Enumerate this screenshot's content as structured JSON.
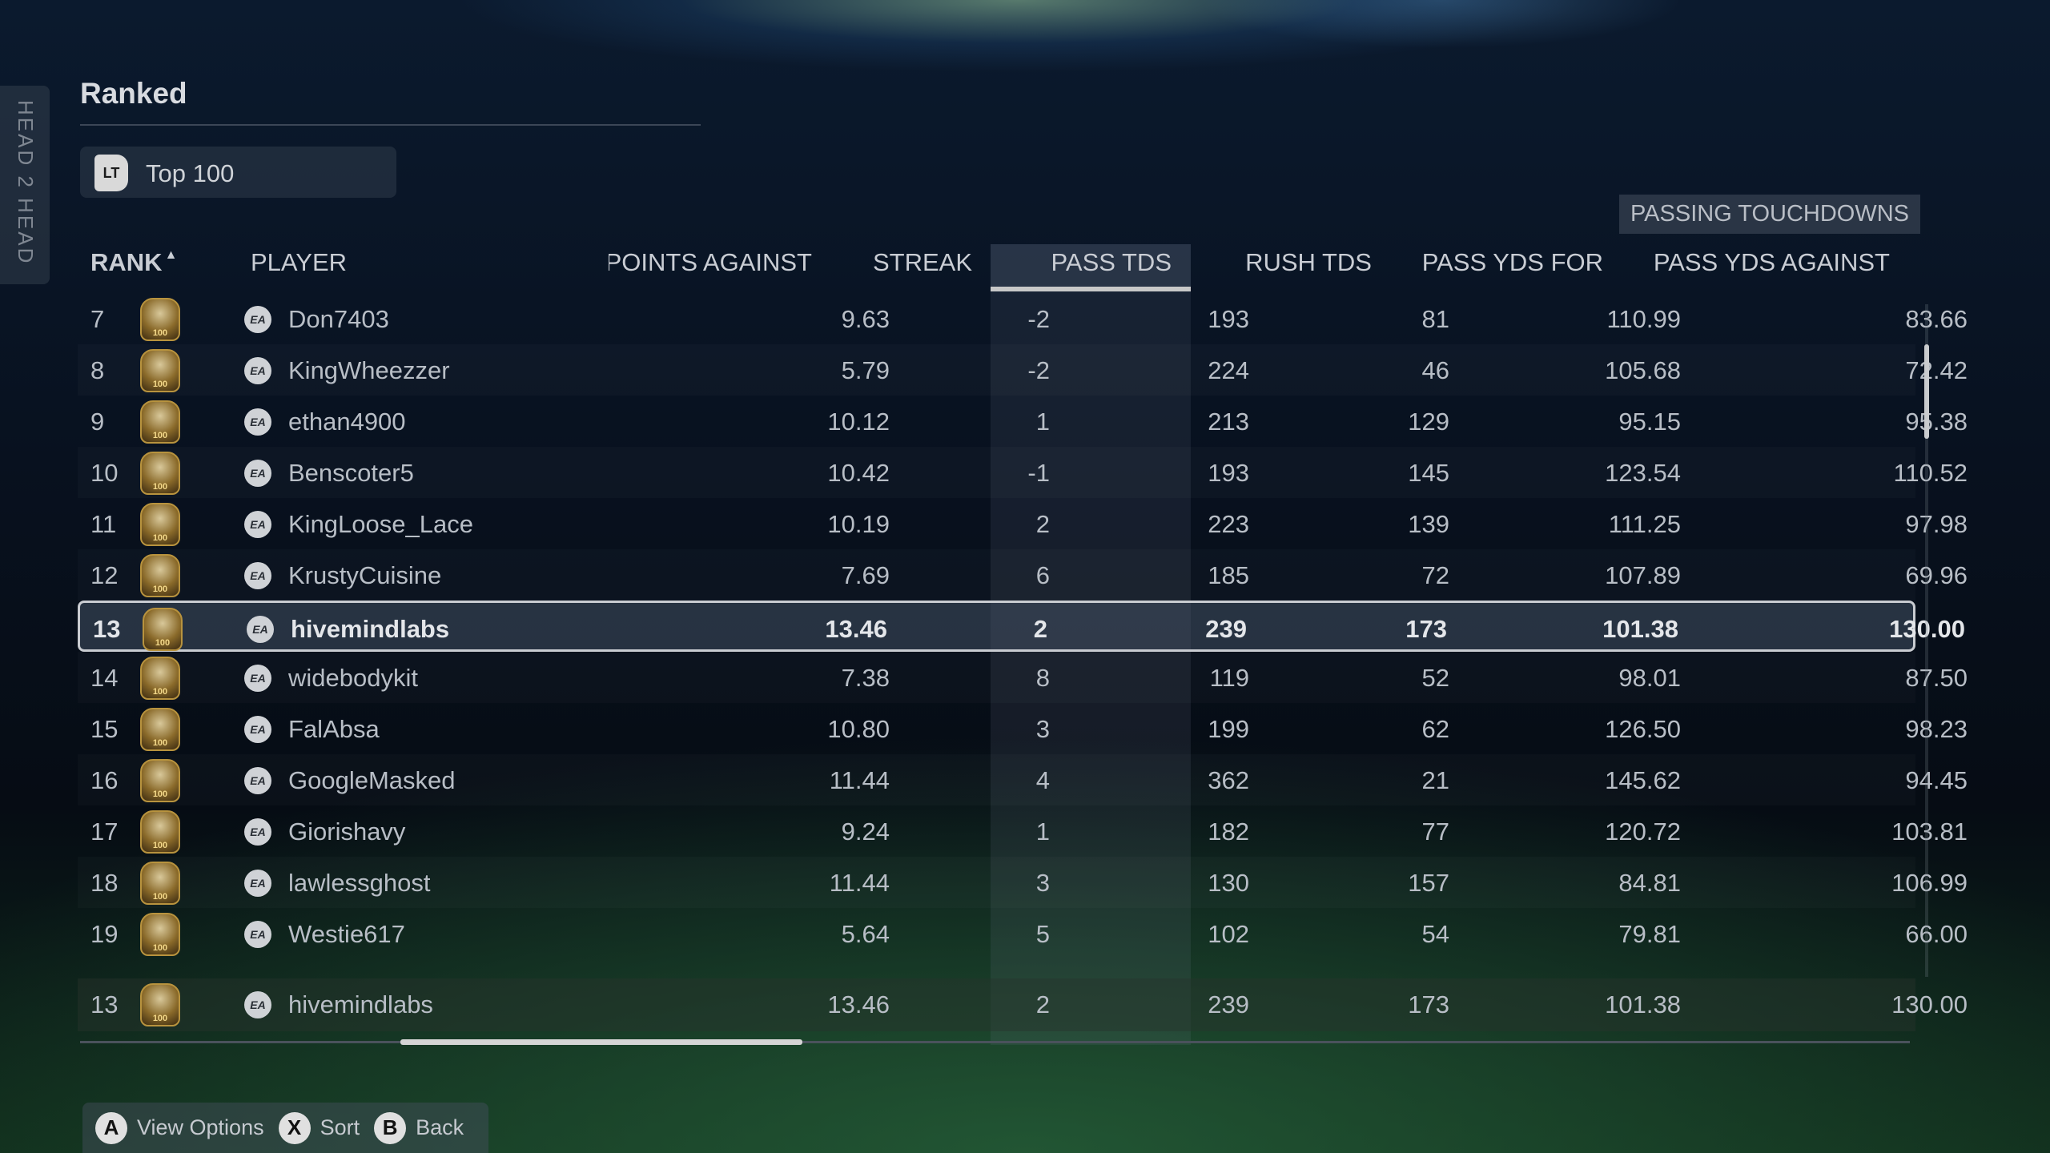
{
  "side_tab": "HEAD 2 HEAD",
  "title": "Ranked",
  "filter": {
    "button": "LT",
    "label": "Top 100"
  },
  "tooltip": "PASSING TOUCHDOWNS",
  "columns": {
    "rank": "RANK",
    "sort_indicator": "▲",
    "player": "PLAYER",
    "points_against": "POINTS AGAINST",
    "streak": "STREAK",
    "pass_tds": "PASS TDS",
    "rush_tds": "RUSH TDS",
    "pass_yds_for": "PASS YDS FOR",
    "pass_yds_against": "PASS YDS AGAINST"
  },
  "sorted_column": "PASS TDS",
  "rows": [
    {
      "rank": "7",
      "player": "Don7403",
      "points_against": "9.63",
      "streak": "-2",
      "pass_tds": "193",
      "rush_tds": "81",
      "pass_yds_for": "110.99",
      "pass_yds_against": "83.66"
    },
    {
      "rank": "8",
      "player": "KingWheezzer",
      "points_against": "5.79",
      "streak": "-2",
      "pass_tds": "224",
      "rush_tds": "46",
      "pass_yds_for": "105.68",
      "pass_yds_against": "72.42"
    },
    {
      "rank": "9",
      "player": "ethan4900",
      "points_against": "10.12",
      "streak": "1",
      "pass_tds": "213",
      "rush_tds": "129",
      "pass_yds_for": "95.15",
      "pass_yds_against": "95.38"
    },
    {
      "rank": "10",
      "player": "Benscoter5",
      "points_against": "10.42",
      "streak": "-1",
      "pass_tds": "193",
      "rush_tds": "145",
      "pass_yds_for": "123.54",
      "pass_yds_against": "110.52"
    },
    {
      "rank": "11",
      "player": "KingLoose_Lace",
      "points_against": "10.19",
      "streak": "2",
      "pass_tds": "223",
      "rush_tds": "139",
      "pass_yds_for": "111.25",
      "pass_yds_against": "97.98"
    },
    {
      "rank": "12",
      "player": "KrustyCuisine",
      "points_against": "7.69",
      "streak": "6",
      "pass_tds": "185",
      "rush_tds": "72",
      "pass_yds_for": "107.89",
      "pass_yds_against": "69.96"
    },
    {
      "rank": "13",
      "player": "hivemindlabs",
      "points_against": "13.46",
      "streak": "2",
      "pass_tds": "239",
      "rush_tds": "173",
      "pass_yds_for": "101.38",
      "pass_yds_against": "130.00",
      "selected": true
    },
    {
      "rank": "14",
      "player": "widebodykit",
      "points_against": "7.38",
      "streak": "8",
      "pass_tds": "119",
      "rush_tds": "52",
      "pass_yds_for": "98.01",
      "pass_yds_against": "87.50"
    },
    {
      "rank": "15",
      "player": "FalAbsa",
      "points_against": "10.80",
      "streak": "3",
      "pass_tds": "199",
      "rush_tds": "62",
      "pass_yds_for": "126.50",
      "pass_yds_against": "98.23"
    },
    {
      "rank": "16",
      "player": "GoogleMasked",
      "points_against": "11.44",
      "streak": "4",
      "pass_tds": "362",
      "rush_tds": "21",
      "pass_yds_for": "145.62",
      "pass_yds_against": "94.45"
    },
    {
      "rank": "17",
      "player": "Giorishavy",
      "points_against": "9.24",
      "streak": "1",
      "pass_tds": "182",
      "rush_tds": "77",
      "pass_yds_for": "120.72",
      "pass_yds_against": "103.81"
    },
    {
      "rank": "18",
      "player": "lawlessghost",
      "points_against": "11.44",
      "streak": "3",
      "pass_tds": "130",
      "rush_tds": "157",
      "pass_yds_for": "84.81",
      "pass_yds_against": "106.99"
    },
    {
      "rank": "19",
      "player": "Westie617",
      "points_against": "5.64",
      "streak": "5",
      "pass_tds": "102",
      "rush_tds": "54",
      "pass_yds_for": "79.81",
      "pass_yds_against": "66.00"
    }
  ],
  "pinned_row": {
    "rank": "13",
    "player": "hivemindlabs",
    "points_against": "13.46",
    "streak": "2",
    "pass_tds": "239",
    "rush_tds": "173",
    "pass_yds_for": "101.38",
    "pass_yds_against": "130.00"
  },
  "ea_label": "EA",
  "footer": [
    {
      "key": "A",
      "label": "View Options"
    },
    {
      "key": "X",
      "label": "Sort"
    },
    {
      "key": "B",
      "label": "Back"
    }
  ],
  "colors": {
    "highlight_border": "#c9ccd1",
    "text": "#c9cdd4",
    "badge_gold": "#b8933e"
  }
}
